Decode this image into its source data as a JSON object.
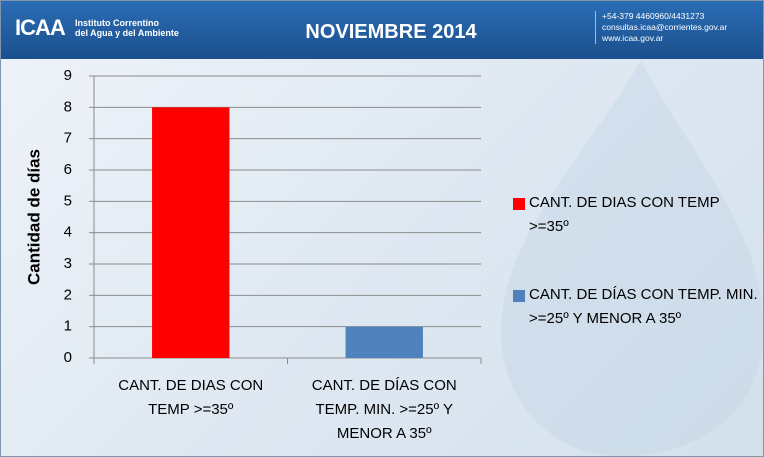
{
  "header": {
    "logo": "ICAA",
    "institute": [
      "Instituto Correntino",
      "del Agua y del Ambiente"
    ],
    "title": "NOVIEMBRE 2014",
    "contact": [
      "+54-379 4460960/4431273",
      "consultas.icaa@corrientes.gov.ar",
      "www.icaa.gov.ar"
    ]
  },
  "chart_data": {
    "type": "bar",
    "ylabel": "Cantidad de días",
    "categories": [
      "CANT. DE DIAS CON TEMP >=35º",
      "CANT. DE DÍAS CON TEMP. MIN. >=25º Y MENOR A 35º"
    ],
    "values": [
      8,
      1
    ],
    "colors": [
      "#ff0000",
      "#4f81bd"
    ],
    "ylim": [
      0,
      9
    ],
    "yticks": [
      0,
      1,
      2,
      3,
      4,
      5,
      6,
      7,
      8,
      9
    ],
    "grid": true,
    "legend": "right"
  }
}
